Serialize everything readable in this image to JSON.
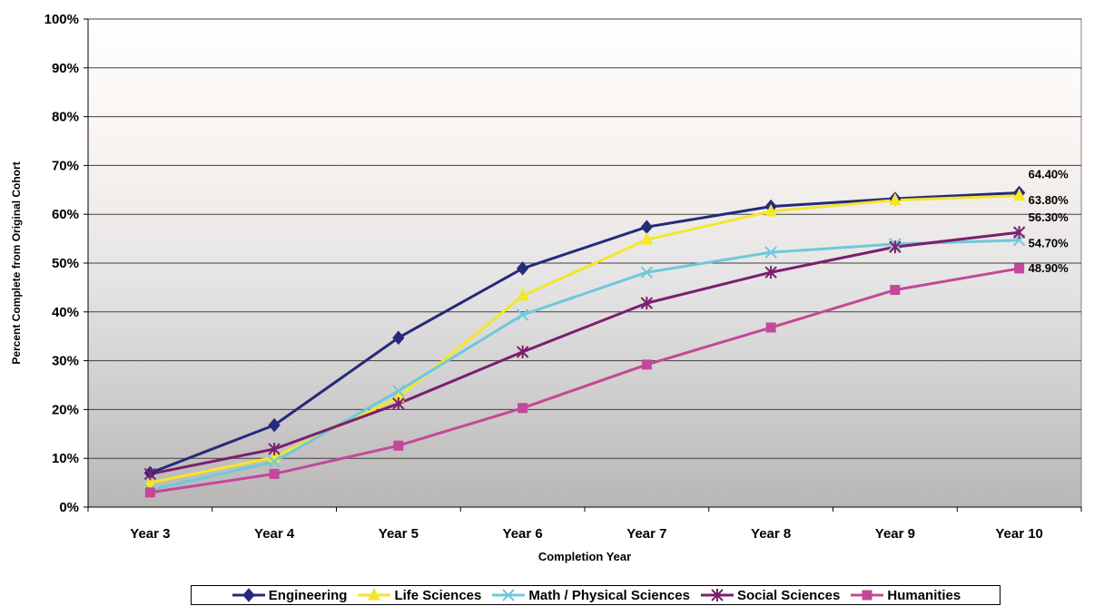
{
  "chart_data": {
    "type": "line",
    "title": "",
    "xlabel": "Completion Year",
    "ylabel": "Percent Complete from Original Cohort",
    "categories": [
      "Year 3",
      "Year 4",
      "Year 5",
      "Year 6",
      "Year 7",
      "Year 8",
      "Year 9",
      "Year 10"
    ],
    "ylim": [
      0,
      100
    ],
    "y_ticks": [
      "0%",
      "10%",
      "20%",
      "30%",
      "40%",
      "50%",
      "60%",
      "70%",
      "80%",
      "90%",
      "100%"
    ],
    "grid": "horizontal",
    "legend_position": "bottom",
    "series": [
      {
        "name": "Engineering",
        "color": "#252a7a",
        "marker": "diamond",
        "values": [
          7.0,
          16.8,
          34.7,
          48.9,
          57.4,
          61.6,
          63.2,
          64.4
        ],
        "end_label": "64.40%"
      },
      {
        "name": "Life Sciences",
        "color": "#f4e62a",
        "marker": "triangle",
        "values": [
          5.0,
          10.2,
          22.5,
          43.3,
          54.8,
          60.6,
          62.9,
          63.8
        ],
        "end_label": "63.80%"
      },
      {
        "name": "Math / Physical Sciences",
        "color": "#6fc8dc",
        "marker": "x",
        "values": [
          3.5,
          9.3,
          23.8,
          39.4,
          48.1,
          52.2,
          53.9,
          54.7
        ],
        "end_label": "54.70%"
      },
      {
        "name": "Social Sciences",
        "color": "#7b1f6e",
        "marker": "asterisk",
        "values": [
          6.8,
          11.9,
          21.2,
          31.8,
          41.8,
          48.1,
          53.3,
          56.3
        ],
        "end_label": "56.30%"
      },
      {
        "name": "Humanities",
        "color": "#c5479a",
        "marker": "square",
        "values": [
          3.0,
          6.8,
          12.6,
          20.3,
          29.2,
          36.8,
          44.5,
          48.9
        ],
        "end_label": "48.90%"
      }
    ]
  }
}
